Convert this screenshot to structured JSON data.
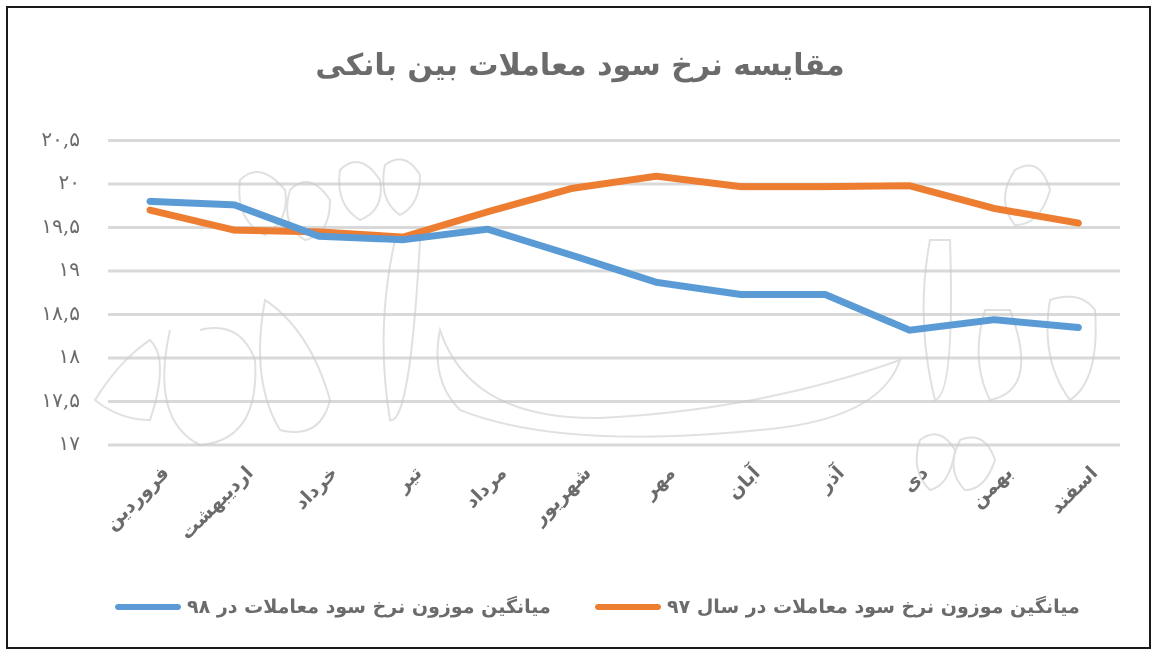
{
  "chart_data": {
    "type": "line",
    "title": "مقایسه نرخ سود معاملات بین بانکی",
    "xlabel": "",
    "ylabel": "",
    "ylim": [
      17,
      20.5
    ],
    "yticks": [
      "۲۰,۵",
      "۲۰",
      "۱۹,۵",
      "۱۹",
      "۱۸,۵",
      "۱۸",
      "۱۷,۵",
      "۱۷"
    ],
    "ytick_values": [
      20.5,
      20,
      19.5,
      19,
      18.5,
      18,
      17.5,
      17
    ],
    "categories": [
      "فروردین",
      "اردیبهشت",
      "خرداد",
      "تیر",
      "مرداد",
      "شهریور",
      "مهر",
      "آبان",
      "آذر",
      "دی",
      "بهمن",
      "اسفند"
    ],
    "grid": true,
    "legend_position": "bottom",
    "series": [
      {
        "name": "میانگین موزون نرخ سود معاملات در ۹۸",
        "color": "#5b9bd5",
        "values": [
          19.8,
          19.76,
          19.4,
          19.36,
          19.48,
          19.18,
          18.87,
          18.73,
          18.73,
          18.32,
          18.44,
          18.35
        ]
      },
      {
        "name": "میانگین موزون نرخ سود معاملات در سال ۹۷",
        "color": "#ed7d31",
        "values": [
          19.7,
          19.47,
          19.45,
          19.39,
          19.68,
          19.95,
          20.09,
          19.97,
          19.97,
          19.98,
          19.72,
          19.55
        ]
      }
    ]
  },
  "watermark": "دنیای اقتصاد",
  "colors": {
    "grid": "#d9d9d9",
    "text": "#6b6b6b",
    "frame": "#1a1a1a"
  }
}
